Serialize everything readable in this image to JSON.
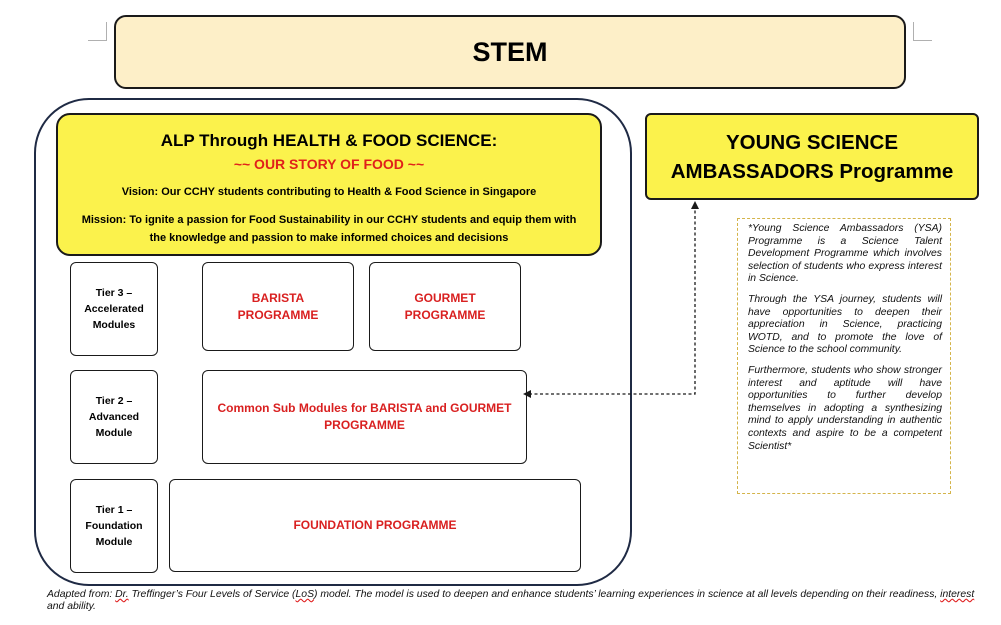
{
  "title": "STEM",
  "alp": {
    "title": "ALP Through HEALTH & FOOD SCIENCE:",
    "subtitle": "~~ OUR STORY OF FOOD ~~",
    "vision": "Vision: Our CCHY students contributing to Health & Food Science in Singapore",
    "mission": "Mission: To ignite a passion for Food Sustainability in our CCHY students and equip them with the knowledge and passion to make informed choices and decisions"
  },
  "tiers": [
    {
      "line1": "Tier 3 –",
      "line2": "Accelerated",
      "line3": "Modules"
    },
    {
      "line1": "Tier 2 –",
      "line2": "Advanced",
      "line3": "Module"
    },
    {
      "line1": "Tier 1 –",
      "line2": "Foundation",
      "line3": "Module"
    }
  ],
  "programmes": {
    "barista": {
      "line1": "BARISTA",
      "line2": "PROGRAMME"
    },
    "gourmet": {
      "line1": "GOURMET",
      "line2": "PROGRAMME"
    },
    "common": {
      "line1": "Common Sub Modules for BARISTA and GOURMET",
      "line2": "PROGRAMME"
    },
    "foundation": "FOUNDATION PROGRAMME"
  },
  "ysa": {
    "title_line1": "YOUNG SCIENCE",
    "title_line2": "AMBASSADORS Programme",
    "paragraphs": [
      "*Young Science Ambassadors (YSA) Programme is a Science Talent Development Programme which involves selection of students who express interest in Science.",
      "Through the YSA journey, students will have opportunities to deepen their appreciation in Science, practicing WOTD, and to promote the love of Science to the school community.",
      "Furthermore, students who show stronger interest and aptitude will have opportunities to further develop themselves in adopting a synthesizing mind to apply understanding in authentic contexts and aspire to be a competent Scientist*"
    ]
  },
  "footer": {
    "prefix": "Adapted from: ",
    "dr": "Dr.",
    "middle1": " Treffinger’s Four Levels of Service (",
    "los": "LoS",
    "middle2": ") model.  The model is used to deepen and enhance students’ learning experiences in science at all levels depending on their readiness, ",
    "interest": "interest",
    "suffix": " and ability."
  },
  "colors": {
    "title_bg": "#fdefc8",
    "highlight_yellow": "#fbf24c",
    "programme_red": "#d92020",
    "frame_navy": "#1f2a44"
  }
}
